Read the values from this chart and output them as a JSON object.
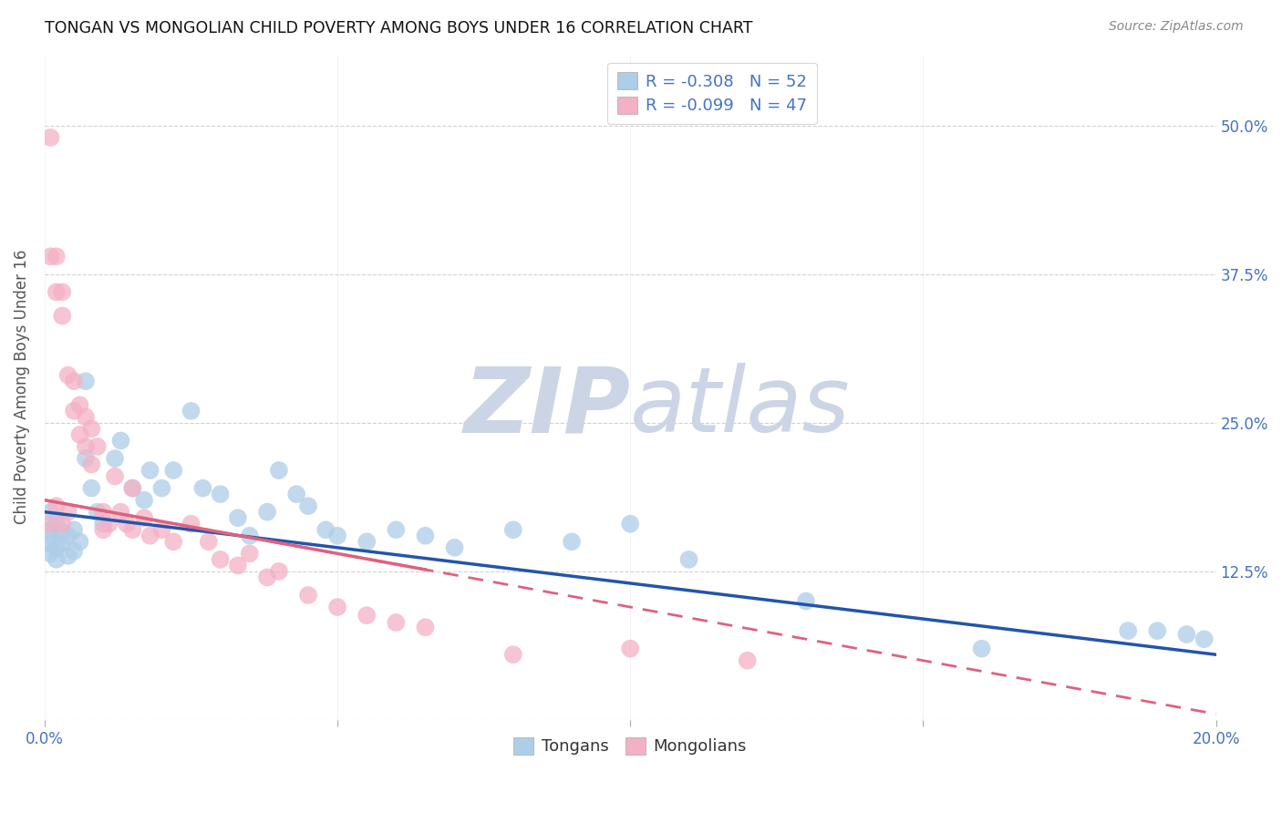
{
  "title": "TONGAN VS MONGOLIAN CHILD POVERTY AMONG BOYS UNDER 16 CORRELATION CHART",
  "source": "Source: ZipAtlas.com",
  "ylabel": "Child Poverty Among Boys Under 16",
  "xlim": [
    0.0,
    0.2
  ],
  "ylim": [
    0.0,
    0.56
  ],
  "tongan_color": "#aecde8",
  "mongolian_color": "#f4b0c4",
  "tongan_line_color": "#2255aa",
  "mongolian_line_color": "#e06080",
  "background_color": "#ffffff",
  "watermark_color": "#ccd5e5",
  "tongan_x": [
    0.001,
    0.001,
    0.001,
    0.001,
    0.001,
    0.002,
    0.002,
    0.002,
    0.003,
    0.003,
    0.004,
    0.004,
    0.005,
    0.005,
    0.006,
    0.007,
    0.007,
    0.008,
    0.009,
    0.01,
    0.012,
    0.013,
    0.015,
    0.017,
    0.018,
    0.02,
    0.022,
    0.025,
    0.027,
    0.03,
    0.033,
    0.035,
    0.038,
    0.04,
    0.043,
    0.045,
    0.048,
    0.05,
    0.055,
    0.06,
    0.065,
    0.07,
    0.08,
    0.09,
    0.1,
    0.11,
    0.13,
    0.16,
    0.185,
    0.19,
    0.195,
    0.198
  ],
  "tongan_y": [
    0.175,
    0.16,
    0.155,
    0.148,
    0.14,
    0.165,
    0.145,
    0.135,
    0.158,
    0.148,
    0.155,
    0.138,
    0.16,
    0.142,
    0.15,
    0.285,
    0.22,
    0.195,
    0.175,
    0.165,
    0.22,
    0.235,
    0.195,
    0.185,
    0.21,
    0.195,
    0.21,
    0.26,
    0.195,
    0.19,
    0.17,
    0.155,
    0.175,
    0.21,
    0.19,
    0.18,
    0.16,
    0.155,
    0.15,
    0.16,
    0.155,
    0.145,
    0.16,
    0.15,
    0.165,
    0.135,
    0.1,
    0.06,
    0.075,
    0.075,
    0.072,
    0.068
  ],
  "mongolian_x": [
    0.001,
    0.001,
    0.001,
    0.002,
    0.002,
    0.002,
    0.003,
    0.003,
    0.003,
    0.004,
    0.004,
    0.005,
    0.005,
    0.006,
    0.006,
    0.007,
    0.007,
    0.008,
    0.008,
    0.009,
    0.01,
    0.01,
    0.011,
    0.012,
    0.013,
    0.014,
    0.015,
    0.015,
    0.017,
    0.018,
    0.02,
    0.022,
    0.025,
    0.028,
    0.03,
    0.033,
    0.035,
    0.038,
    0.04,
    0.045,
    0.05,
    0.055,
    0.06,
    0.065,
    0.08,
    0.1,
    0.12
  ],
  "mongolian_y": [
    0.49,
    0.39,
    0.165,
    0.39,
    0.36,
    0.18,
    0.36,
    0.34,
    0.165,
    0.29,
    0.175,
    0.285,
    0.26,
    0.265,
    0.24,
    0.255,
    0.23,
    0.245,
    0.215,
    0.23,
    0.175,
    0.16,
    0.165,
    0.205,
    0.175,
    0.165,
    0.195,
    0.16,
    0.17,
    0.155,
    0.16,
    0.15,
    0.165,
    0.15,
    0.135,
    0.13,
    0.14,
    0.12,
    0.125,
    0.105,
    0.095,
    0.088,
    0.082,
    0.078,
    0.055,
    0.06,
    0.05
  ]
}
